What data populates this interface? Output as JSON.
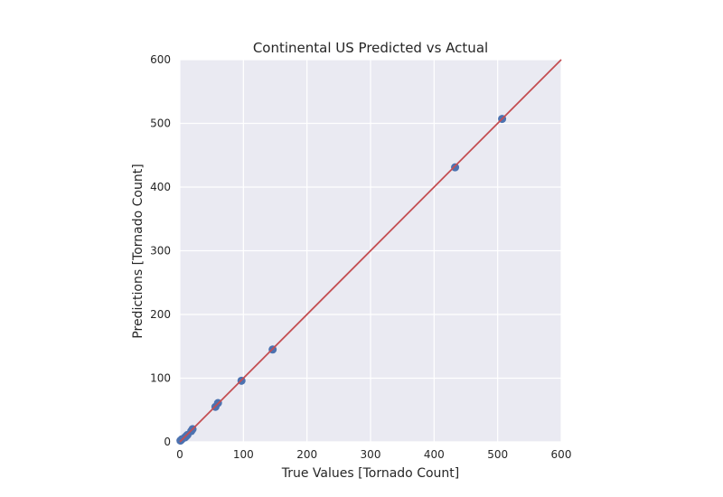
{
  "chart_data": {
    "type": "scatter",
    "title": "Continental US Predicted vs Actual",
    "xlabel": "True Values [Tornado Count]",
    "ylabel": "Predictions [Tornado Count]",
    "xlim": [
      0,
      600
    ],
    "ylim": [
      0,
      600
    ],
    "xticks": [
      0,
      100,
      200,
      300,
      400,
      500,
      600
    ],
    "yticks": [
      0,
      100,
      200,
      300,
      400,
      500,
      600
    ],
    "grid": true,
    "colors": {
      "background": "#eaeaf2",
      "grid": "#ffffff",
      "points": "#4c72b0",
      "line": "#c44e52"
    },
    "series": [
      {
        "type": "scatter",
        "x": [
          1,
          3,
          8,
          10,
          12,
          18,
          20,
          56,
          60,
          97,
          146,
          433,
          507
        ],
        "y": [
          2,
          4,
          7,
          9,
          11,
          17,
          20,
          55,
          61,
          96,
          145,
          431,
          507
        ]
      },
      {
        "type": "line",
        "x": [
          0,
          600
        ],
        "y": [
          0,
          600
        ]
      }
    ]
  }
}
